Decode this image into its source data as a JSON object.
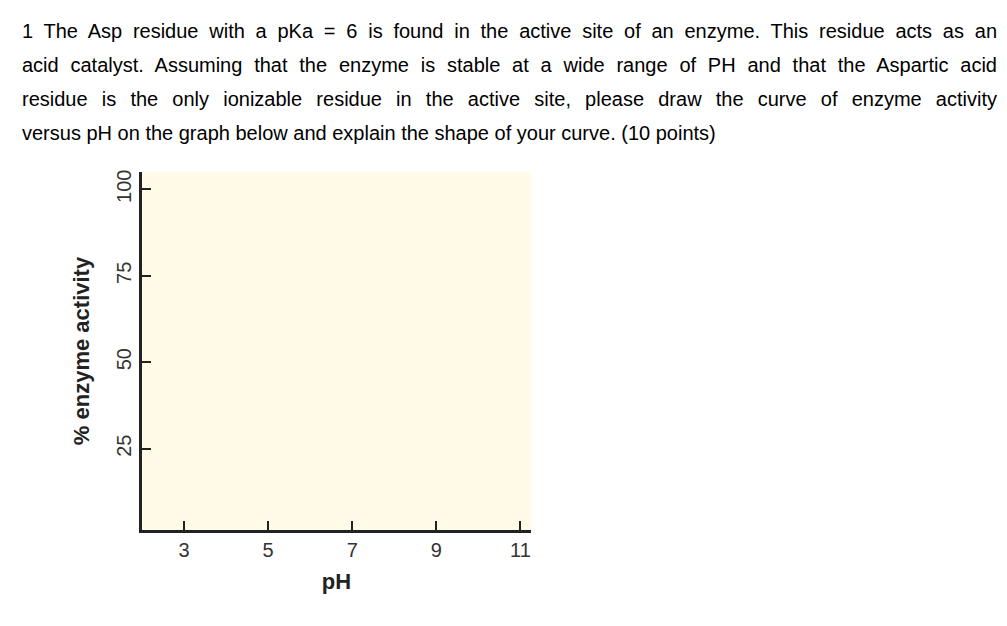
{
  "question": {
    "lines": [
      "1 The Asp residue with a pKa = 6 is found in the active site of an enzyme. This residue acts as an",
      "acid catalyst. Assuming that the enzyme is stable at a wide range of PH and that the Aspartic acid",
      "residue is the only ionizable residue in the active site, please draw the curve of enzyme activity",
      "versus pH on the graph below and explain the shape of your curve. (10 points)"
    ]
  },
  "chart_data": {
    "type": "line",
    "x_label": "pH",
    "y_label": "% enzyme activity",
    "xlim": [
      2,
      11.25
    ],
    "xticks": [
      3,
      5,
      7,
      9,
      11
    ],
    "ylim": [
      1.5,
      105
    ],
    "yticks": [
      25,
      50,
      75,
      100
    ],
    "grid": false,
    "series": []
  }
}
